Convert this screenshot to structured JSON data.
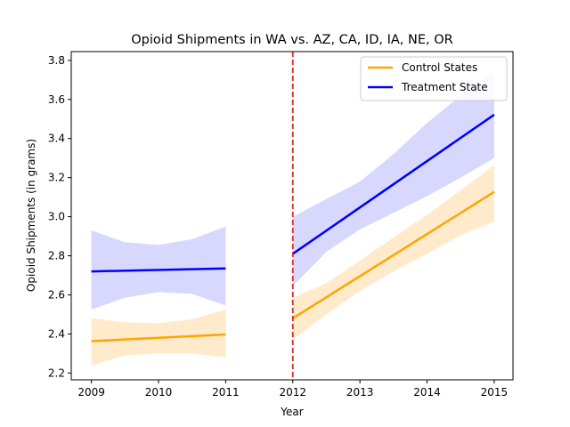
{
  "chart_data": {
    "type": "line",
    "title": "Opioid Shipments in WA vs. AZ, CA, ID, IA, NE, OR",
    "xlabel": "Year",
    "ylabel": "Opioid Shipments (in grams)",
    "xlim": [
      2008.7,
      2015.28
    ],
    "ylim": [
      2.165,
      3.845
    ],
    "xticks": [
      2009,
      2010,
      2011,
      2012,
      2013,
      2014,
      2015
    ],
    "yticks": [
      2.2,
      2.4,
      2.6,
      2.8,
      3.0,
      3.2,
      3.4,
      3.6,
      3.8
    ],
    "grid": false,
    "legend_position": "top-right",
    "policy_line": {
      "x": 2012,
      "color": "#d62728",
      "style": "dashed"
    },
    "series": [
      {
        "name": "Control States",
        "color": "#ffa500",
        "band_color": "#ffebcc",
        "segments": [
          {
            "x": [
              2009,
              2011
            ],
            "y": [
              2.363,
              2.397
            ],
            "ci_x": [
              2009,
              2009.5,
              2010,
              2010.5,
              2011
            ],
            "ci_lower": [
              2.24,
              2.29,
              2.3,
              2.3,
              2.28
            ],
            "ci_upper": [
              2.48,
              2.46,
              2.455,
              2.475,
              2.525
            ]
          },
          {
            "x": [
              2012,
              2015
            ],
            "y": [
              2.48,
              3.127
            ],
            "ci_x": [
              2012,
              2012.5,
              2013,
              2013.5,
              2014,
              2014.5,
              2015
            ],
            "ci_lower": [
              2.37,
              2.5,
              2.62,
              2.72,
              2.81,
              2.905,
              2.975
            ],
            "ci_upper": [
              2.585,
              2.66,
              2.775,
              2.895,
              3.01,
              3.135,
              3.265
            ]
          }
        ]
      },
      {
        "name": "Treatment State",
        "color": "#0000ff",
        "band_color": "#d8d8ff",
        "segments": [
          {
            "x": [
              2009,
              2011
            ],
            "y": [
              2.72,
              2.735
            ],
            "ci_x": [
              2009,
              2009.5,
              2010,
              2010.5,
              2011
            ],
            "ci_lower": [
              2.525,
              2.585,
              2.615,
              2.605,
              2.545
            ],
            "ci_upper": [
              2.93,
              2.87,
              2.855,
              2.885,
              2.95
            ]
          },
          {
            "x": [
              2012,
              2015
            ],
            "y": [
              2.81,
              3.522
            ],
            "ci_x": [
              2012,
              2012.5,
              2013,
              2013.5,
              2014,
              2014.5,
              2015
            ],
            "ci_lower": [
              2.645,
              2.82,
              2.935,
              3.02,
              3.105,
              3.2,
              3.3
            ],
            "ci_upper": [
              3.0,
              3.09,
              3.18,
              3.32,
              3.48,
              3.62,
              3.75
            ]
          }
        ]
      }
    ]
  }
}
